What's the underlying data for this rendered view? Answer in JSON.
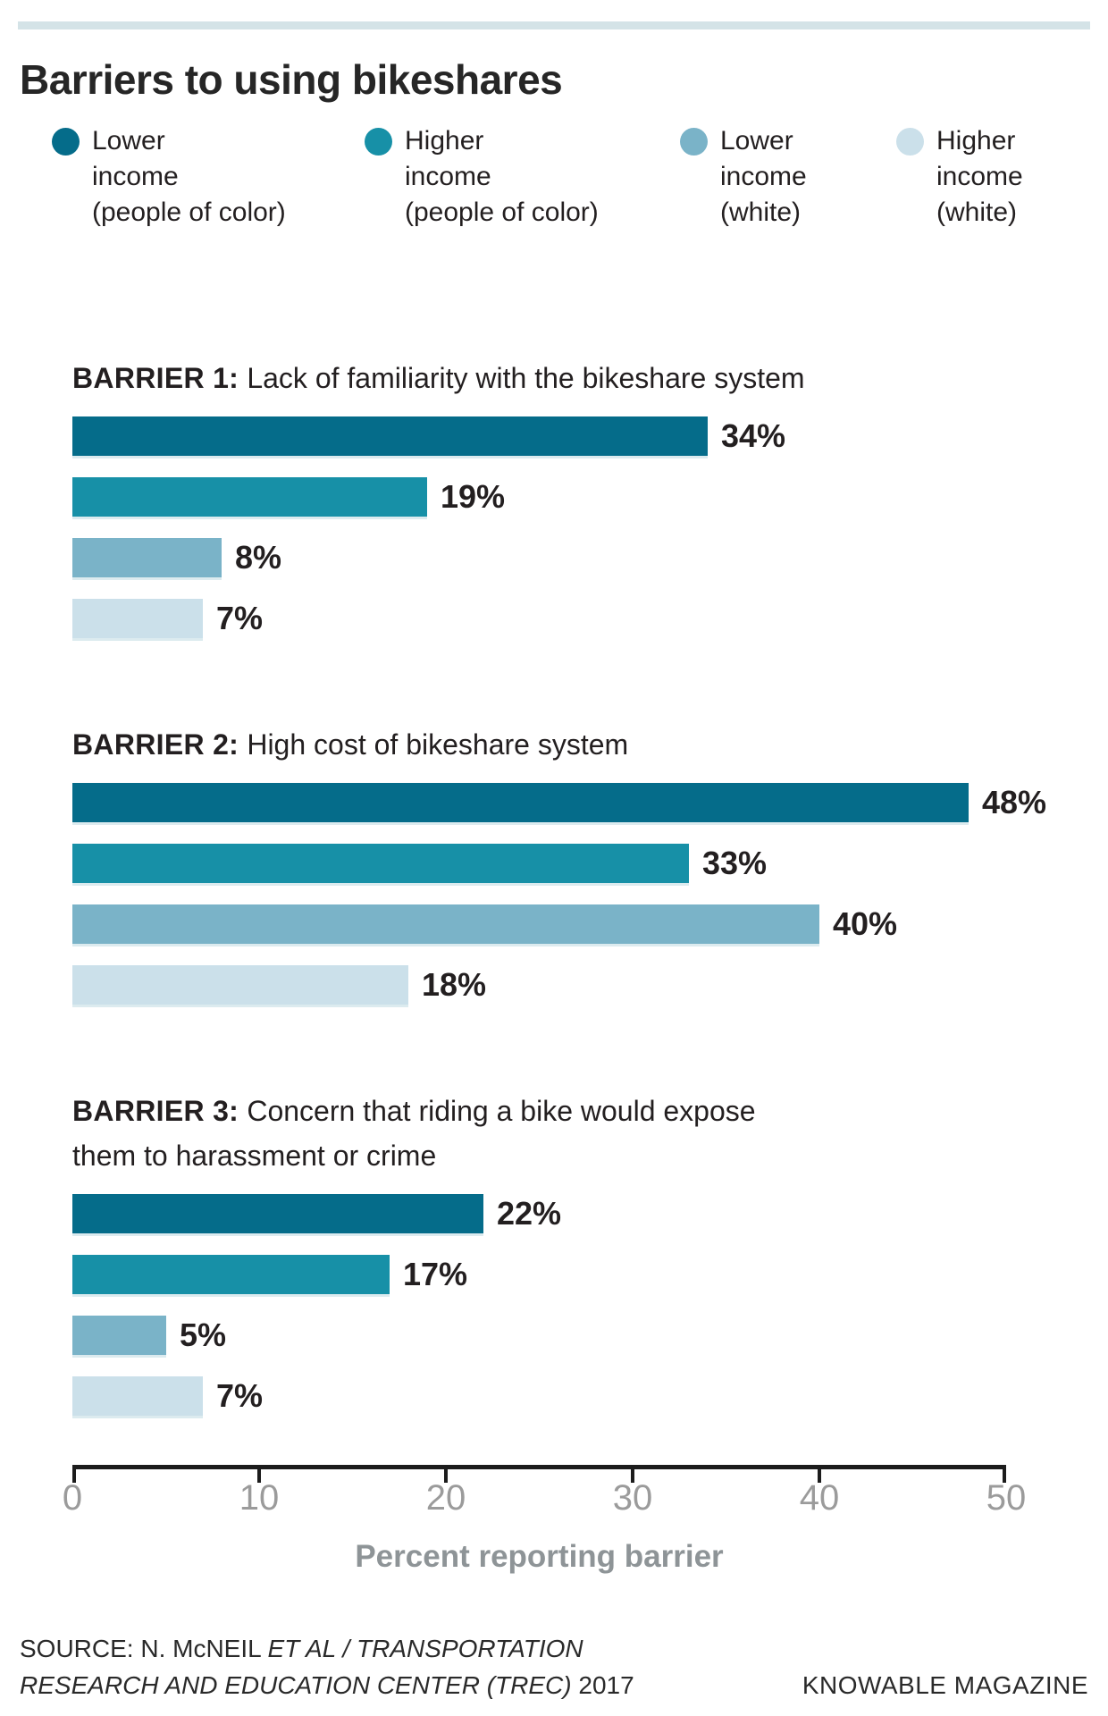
{
  "accent_bar_color": "#d4e3e7",
  "title": "Barriers to using bikeshares",
  "legend": [
    {
      "label": "Lower income (people of color)",
      "lines": [
        "Lower",
        "income",
        "(people of color)"
      ],
      "color": "#056c8a"
    },
    {
      "label": "Higher income (people of color)",
      "lines": [
        "Higher",
        "income",
        "(people of color)"
      ],
      "color": "#1790a7"
    },
    {
      "label": "Lower income (white)",
      "lines": [
        "Lower",
        "income",
        "(white)"
      ],
      "color": "#7ab3c8"
    },
    {
      "label": "Higher income (white)",
      "lines": [
        "Higher",
        "income",
        "(white)"
      ],
      "color": "#cbe0ea"
    }
  ],
  "chart_data": {
    "type": "bar",
    "orientation": "horizontal",
    "title": "Barriers to using bikeshares",
    "xlabel": "Percent reporting barrier",
    "ylabel": "",
    "xlim": [
      0,
      50
    ],
    "xticks": [
      0,
      10,
      20,
      30,
      40,
      50
    ],
    "grid": false,
    "legend_position": "top",
    "value_suffix": "%",
    "series_names": [
      "Lower income (people of color)",
      "Higher income (people of color)",
      "Lower income (white)",
      "Higher income (white)"
    ],
    "series_colors": [
      "#056c8a",
      "#1790a7",
      "#7ab3c8",
      "#cbe0ea"
    ],
    "groups": [
      {
        "heading_bold": "BARRIER 1:",
        "heading_lines": [
          "Lack of familiarity with the bikeshare system"
        ],
        "values": [
          34,
          19,
          8,
          7
        ]
      },
      {
        "heading_bold": "BARRIER 2:",
        "heading_lines": [
          "High cost of bikeshare system"
        ],
        "values": [
          48,
          33,
          40,
          18
        ]
      },
      {
        "heading_bold": "BARRIER 3:",
        "heading_lines": [
          "Concern that riding a bike would expose",
          "them to harassment or crime"
        ],
        "values": [
          22,
          17,
          5,
          7
        ]
      }
    ]
  },
  "footer": {
    "source_lines": [
      [
        {
          "text": "SOURCE: N. McNEIL ",
          "italic": false
        },
        {
          "text": "ET AL / TRANSPORTATION",
          "italic": true
        }
      ],
      [
        {
          "text": "RESEARCH AND EDUCATION CENTER (TREC)",
          "italic": true
        },
        {
          "text": " 2017",
          "italic": false
        }
      ]
    ],
    "credit": "KNOWABLE MAGAZINE"
  }
}
